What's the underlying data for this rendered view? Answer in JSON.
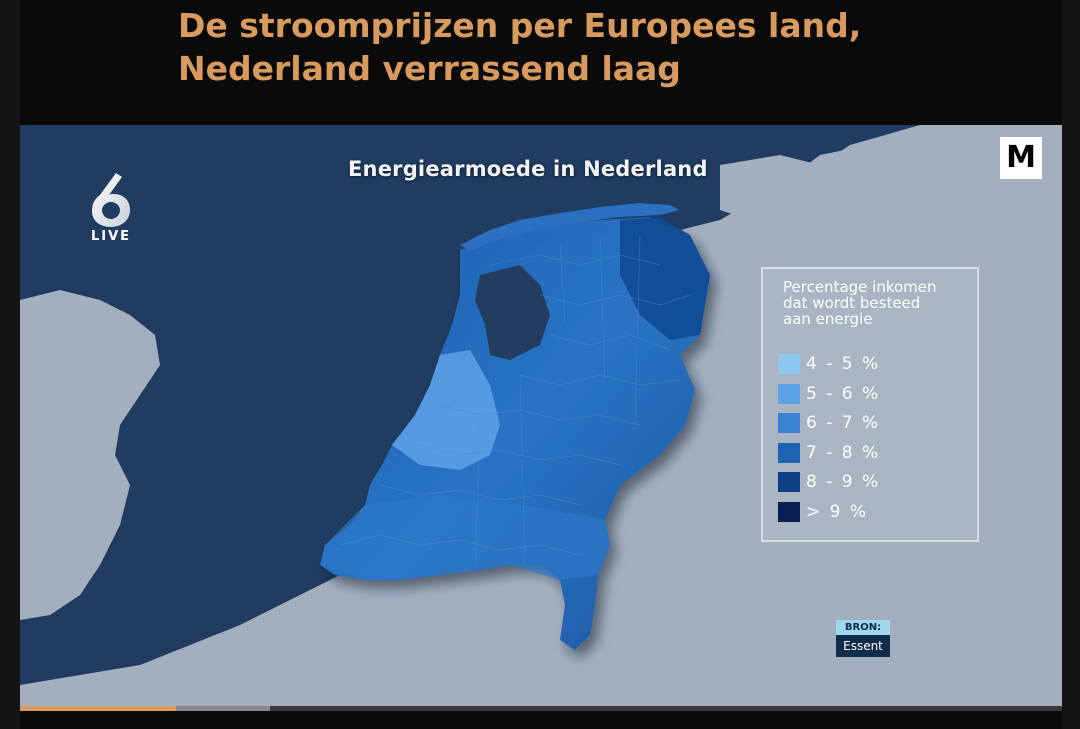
{
  "headline": {
    "line1": "De stroomprijzen per Europees land,",
    "line2": "Nederland verrassend laag"
  },
  "colors": {
    "headline": "#d99a5f",
    "sea": "#1f3a5e",
    "land": "#9aa6b6",
    "progress": "#d99a5f"
  },
  "video": {
    "map_title": "Energiearmoede in Nederland",
    "channel_logo": {
      "number": "6",
      "sub": "LIVE"
    },
    "watermark": "M",
    "legend": {
      "title": [
        "Percentage inkomen",
        "dat wordt besteed",
        "aan energie"
      ],
      "items": [
        {
          "label": "4 - 5 %",
          "color": "#8ec9f2"
        },
        {
          "label": "5 - 6 %",
          "color": "#5ea2e6"
        },
        {
          "label": "6 - 7 %",
          "color": "#3a82d4"
        },
        {
          "label": "7 - 8 %",
          "color": "#1e62b2"
        },
        {
          "label": "8 - 9 %",
          "color": "#0f3f86"
        },
        {
          "label": "> 9 %",
          "color": "#071f52"
        }
      ]
    },
    "source": {
      "label": "BRON:",
      "value": "Essent"
    }
  },
  "player": {
    "progress_fraction": 0.15,
    "buffered_fraction": 0.24
  }
}
